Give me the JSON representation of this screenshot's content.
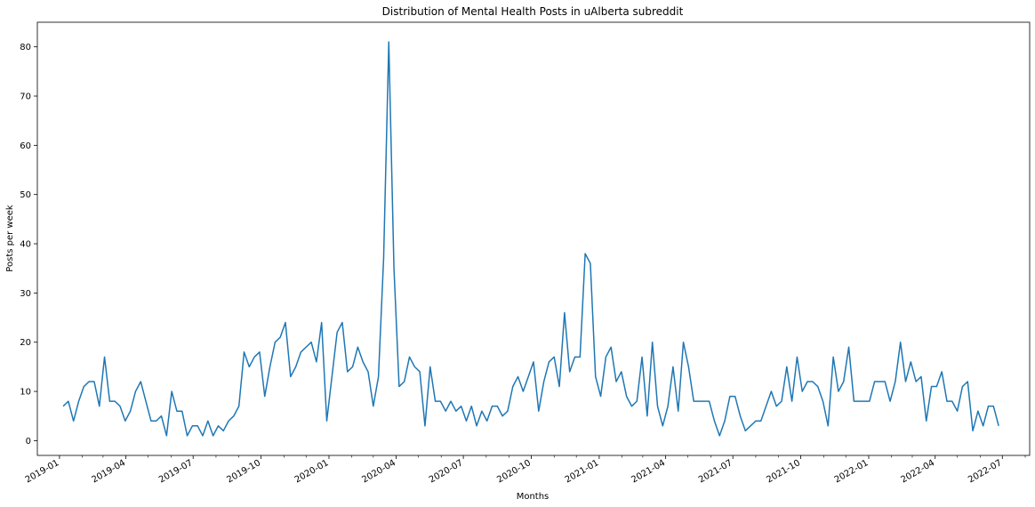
{
  "chart_data": {
    "type": "line",
    "title": "Distribution of Mental Health Posts in uAlberta subreddit",
    "xlabel": "Months",
    "ylabel": "Posts per week",
    "ylim": [
      -3,
      85
    ],
    "xlim": [
      "2018-12-02",
      "2022-08-07"
    ],
    "grid": false,
    "y_ticks": [
      0,
      10,
      20,
      30,
      40,
      50,
      60,
      70,
      80
    ],
    "x_ticks": [
      {
        "date": "2019-01-01",
        "label": "2019-01"
      },
      {
        "date": "2019-04-01",
        "label": "2019-04"
      },
      {
        "date": "2019-07-01",
        "label": "2019-07"
      },
      {
        "date": "2019-10-01",
        "label": "2019-10"
      },
      {
        "date": "2020-01-01",
        "label": "2020-01"
      },
      {
        "date": "2020-04-01",
        "label": "2020-04"
      },
      {
        "date": "2020-07-01",
        "label": "2020-07"
      },
      {
        "date": "2020-10-01",
        "label": "2020-10"
      },
      {
        "date": "2021-01-01",
        "label": "2021-01"
      },
      {
        "date": "2021-04-01",
        "label": "2021-04"
      },
      {
        "date": "2021-07-01",
        "label": "2021-07"
      },
      {
        "date": "2021-10-01",
        "label": "2021-10"
      },
      {
        "date": "2022-01-01",
        "label": "2022-01"
      },
      {
        "date": "2022-04-01",
        "label": "2022-04"
      },
      {
        "date": "2022-07-01",
        "label": "2022-07"
      }
    ],
    "x_minor_ticks": [
      "2019-02-01",
      "2019-03-01",
      "2019-05-01",
      "2019-06-01",
      "2019-08-01",
      "2019-09-01",
      "2019-11-01",
      "2019-12-01",
      "2020-02-01",
      "2020-03-01",
      "2020-05-01",
      "2020-06-01",
      "2020-08-01",
      "2020-09-01",
      "2020-11-01",
      "2020-12-01",
      "2021-02-01",
      "2021-03-01",
      "2021-05-01",
      "2021-06-01",
      "2021-08-01",
      "2021-09-01",
      "2021-11-01",
      "2021-12-01",
      "2022-02-01",
      "2022-03-01",
      "2022-05-01",
      "2022-06-01",
      "2022-08-01"
    ],
    "line_color": "#1f77b4",
    "series": [
      {
        "x": [
          "2019-01-06",
          "2019-01-13",
          "2019-01-20",
          "2019-01-27",
          "2019-02-03",
          "2019-02-10",
          "2019-02-17",
          "2019-02-24",
          "2019-03-03",
          "2019-03-10",
          "2019-03-17",
          "2019-03-24",
          "2019-03-31",
          "2019-04-07",
          "2019-04-14",
          "2019-04-21",
          "2019-04-28",
          "2019-05-05",
          "2019-05-12",
          "2019-05-19",
          "2019-05-26",
          "2019-06-02",
          "2019-06-09",
          "2019-06-16",
          "2019-06-23",
          "2019-06-30",
          "2019-07-07",
          "2019-07-14",
          "2019-07-21",
          "2019-07-28",
          "2019-08-04",
          "2019-08-11",
          "2019-08-18",
          "2019-08-25",
          "2019-09-01",
          "2019-09-08",
          "2019-09-15",
          "2019-09-22",
          "2019-09-29",
          "2019-10-06",
          "2019-10-13",
          "2019-10-20",
          "2019-10-27",
          "2019-11-03",
          "2019-11-10",
          "2019-11-17",
          "2019-11-24",
          "2019-12-01",
          "2019-12-08",
          "2019-12-15",
          "2019-12-22",
          "2019-12-29",
          "2020-01-05",
          "2020-01-12",
          "2020-01-19",
          "2020-01-26",
          "2020-02-02",
          "2020-02-09",
          "2020-02-16",
          "2020-02-23",
          "2020-03-01",
          "2020-03-08",
          "2020-03-15",
          "2020-03-22",
          "2020-03-29",
          "2020-04-05",
          "2020-04-12",
          "2020-04-19",
          "2020-04-26",
          "2020-05-03",
          "2020-05-10",
          "2020-05-17",
          "2020-05-24",
          "2020-05-31",
          "2020-06-07",
          "2020-06-14",
          "2020-06-21",
          "2020-06-28",
          "2020-07-05",
          "2020-07-12",
          "2020-07-19",
          "2020-07-26",
          "2020-08-02",
          "2020-08-09",
          "2020-08-16",
          "2020-08-23",
          "2020-08-30",
          "2020-09-06",
          "2020-09-13",
          "2020-09-20",
          "2020-09-27",
          "2020-10-04",
          "2020-10-11",
          "2020-10-18",
          "2020-10-25",
          "2020-11-01",
          "2020-11-08",
          "2020-11-15",
          "2020-11-22",
          "2020-11-29",
          "2020-12-06",
          "2020-12-13",
          "2020-12-20",
          "2020-12-27",
          "2021-01-03",
          "2021-01-10",
          "2021-01-17",
          "2021-01-24",
          "2021-01-31",
          "2021-02-07",
          "2021-02-14",
          "2021-02-21",
          "2021-02-28",
          "2021-03-07",
          "2021-03-14",
          "2021-03-21",
          "2021-03-28",
          "2021-04-04",
          "2021-04-11",
          "2021-04-18",
          "2021-04-25",
          "2021-05-02",
          "2021-05-09",
          "2021-05-16",
          "2021-05-23",
          "2021-05-30",
          "2021-06-06",
          "2021-06-13",
          "2021-06-20",
          "2021-06-27",
          "2021-07-04",
          "2021-07-11",
          "2021-07-18",
          "2021-07-25",
          "2021-08-01",
          "2021-08-08",
          "2021-08-15",
          "2021-08-22",
          "2021-08-29",
          "2021-09-05",
          "2021-09-12",
          "2021-09-19",
          "2021-09-26",
          "2021-10-03",
          "2021-10-10",
          "2021-10-17",
          "2021-10-24",
          "2021-10-31",
          "2021-11-07",
          "2021-11-14",
          "2021-11-21",
          "2021-11-28",
          "2021-12-05",
          "2021-12-12",
          "2022-01-02",
          "2022-01-09",
          "2022-01-16",
          "2022-01-23",
          "2022-01-30",
          "2022-02-06",
          "2022-02-13",
          "2022-02-20",
          "2022-02-27",
          "2022-03-06",
          "2022-03-13",
          "2022-03-20",
          "2022-03-27",
          "2022-04-03",
          "2022-04-10",
          "2022-04-17",
          "2022-04-24",
          "2022-05-01",
          "2022-05-08",
          "2022-05-15",
          "2022-05-22",
          "2022-05-29",
          "2022-06-05",
          "2022-06-12",
          "2022-06-19",
          "2022-06-26"
        ],
        "values": [
          7,
          8,
          4,
          8,
          11,
          12,
          12,
          7,
          17,
          8,
          8,
          7,
          4,
          6,
          10,
          12,
          8,
          4,
          4,
          5,
          1,
          10,
          6,
          6,
          1,
          3,
          3,
          1,
          4,
          1,
          3,
          2,
          4,
          5,
          7,
          18,
          15,
          17,
          18,
          9,
          15,
          20,
          21,
          24,
          13,
          15,
          18,
          19,
          20,
          16,
          24,
          4,
          13,
          22,
          24,
          14,
          15,
          19,
          16,
          14,
          7,
          13,
          37,
          81,
          35,
          11,
          12,
          17,
          15,
          14,
          3,
          15,
          8,
          8,
          6,
          8,
          6,
          7,
          4,
          7,
          3,
          6,
          4,
          7,
          7,
          5,
          6,
          11,
          13,
          10,
          13,
          16,
          6,
          12,
          16,
          17,
          11,
          26,
          14,
          17,
          17,
          38,
          36,
          13,
          9,
          17,
          19,
          12,
          14,
          9,
          7,
          8,
          17,
          5,
          20,
          7,
          3,
          7,
          15,
          6,
          20,
          15,
          8,
          8,
          8,
          8,
          4,
          1,
          4,
          9,
          9,
          5,
          2,
          3,
          4,
          4,
          7,
          10,
          7,
          8,
          15,
          8,
          17,
          10,
          12,
          12,
          11,
          8,
          3,
          17,
          10,
          12,
          19,
          8,
          8,
          12,
          12,
          12,
          8,
          12,
          20,
          12,
          16,
          12,
          13,
          4,
          11,
          11,
          14,
          8,
          8,
          6,
          11,
          12,
          2,
          6,
          3,
          7,
          7,
          3
        ]
      }
    ]
  }
}
